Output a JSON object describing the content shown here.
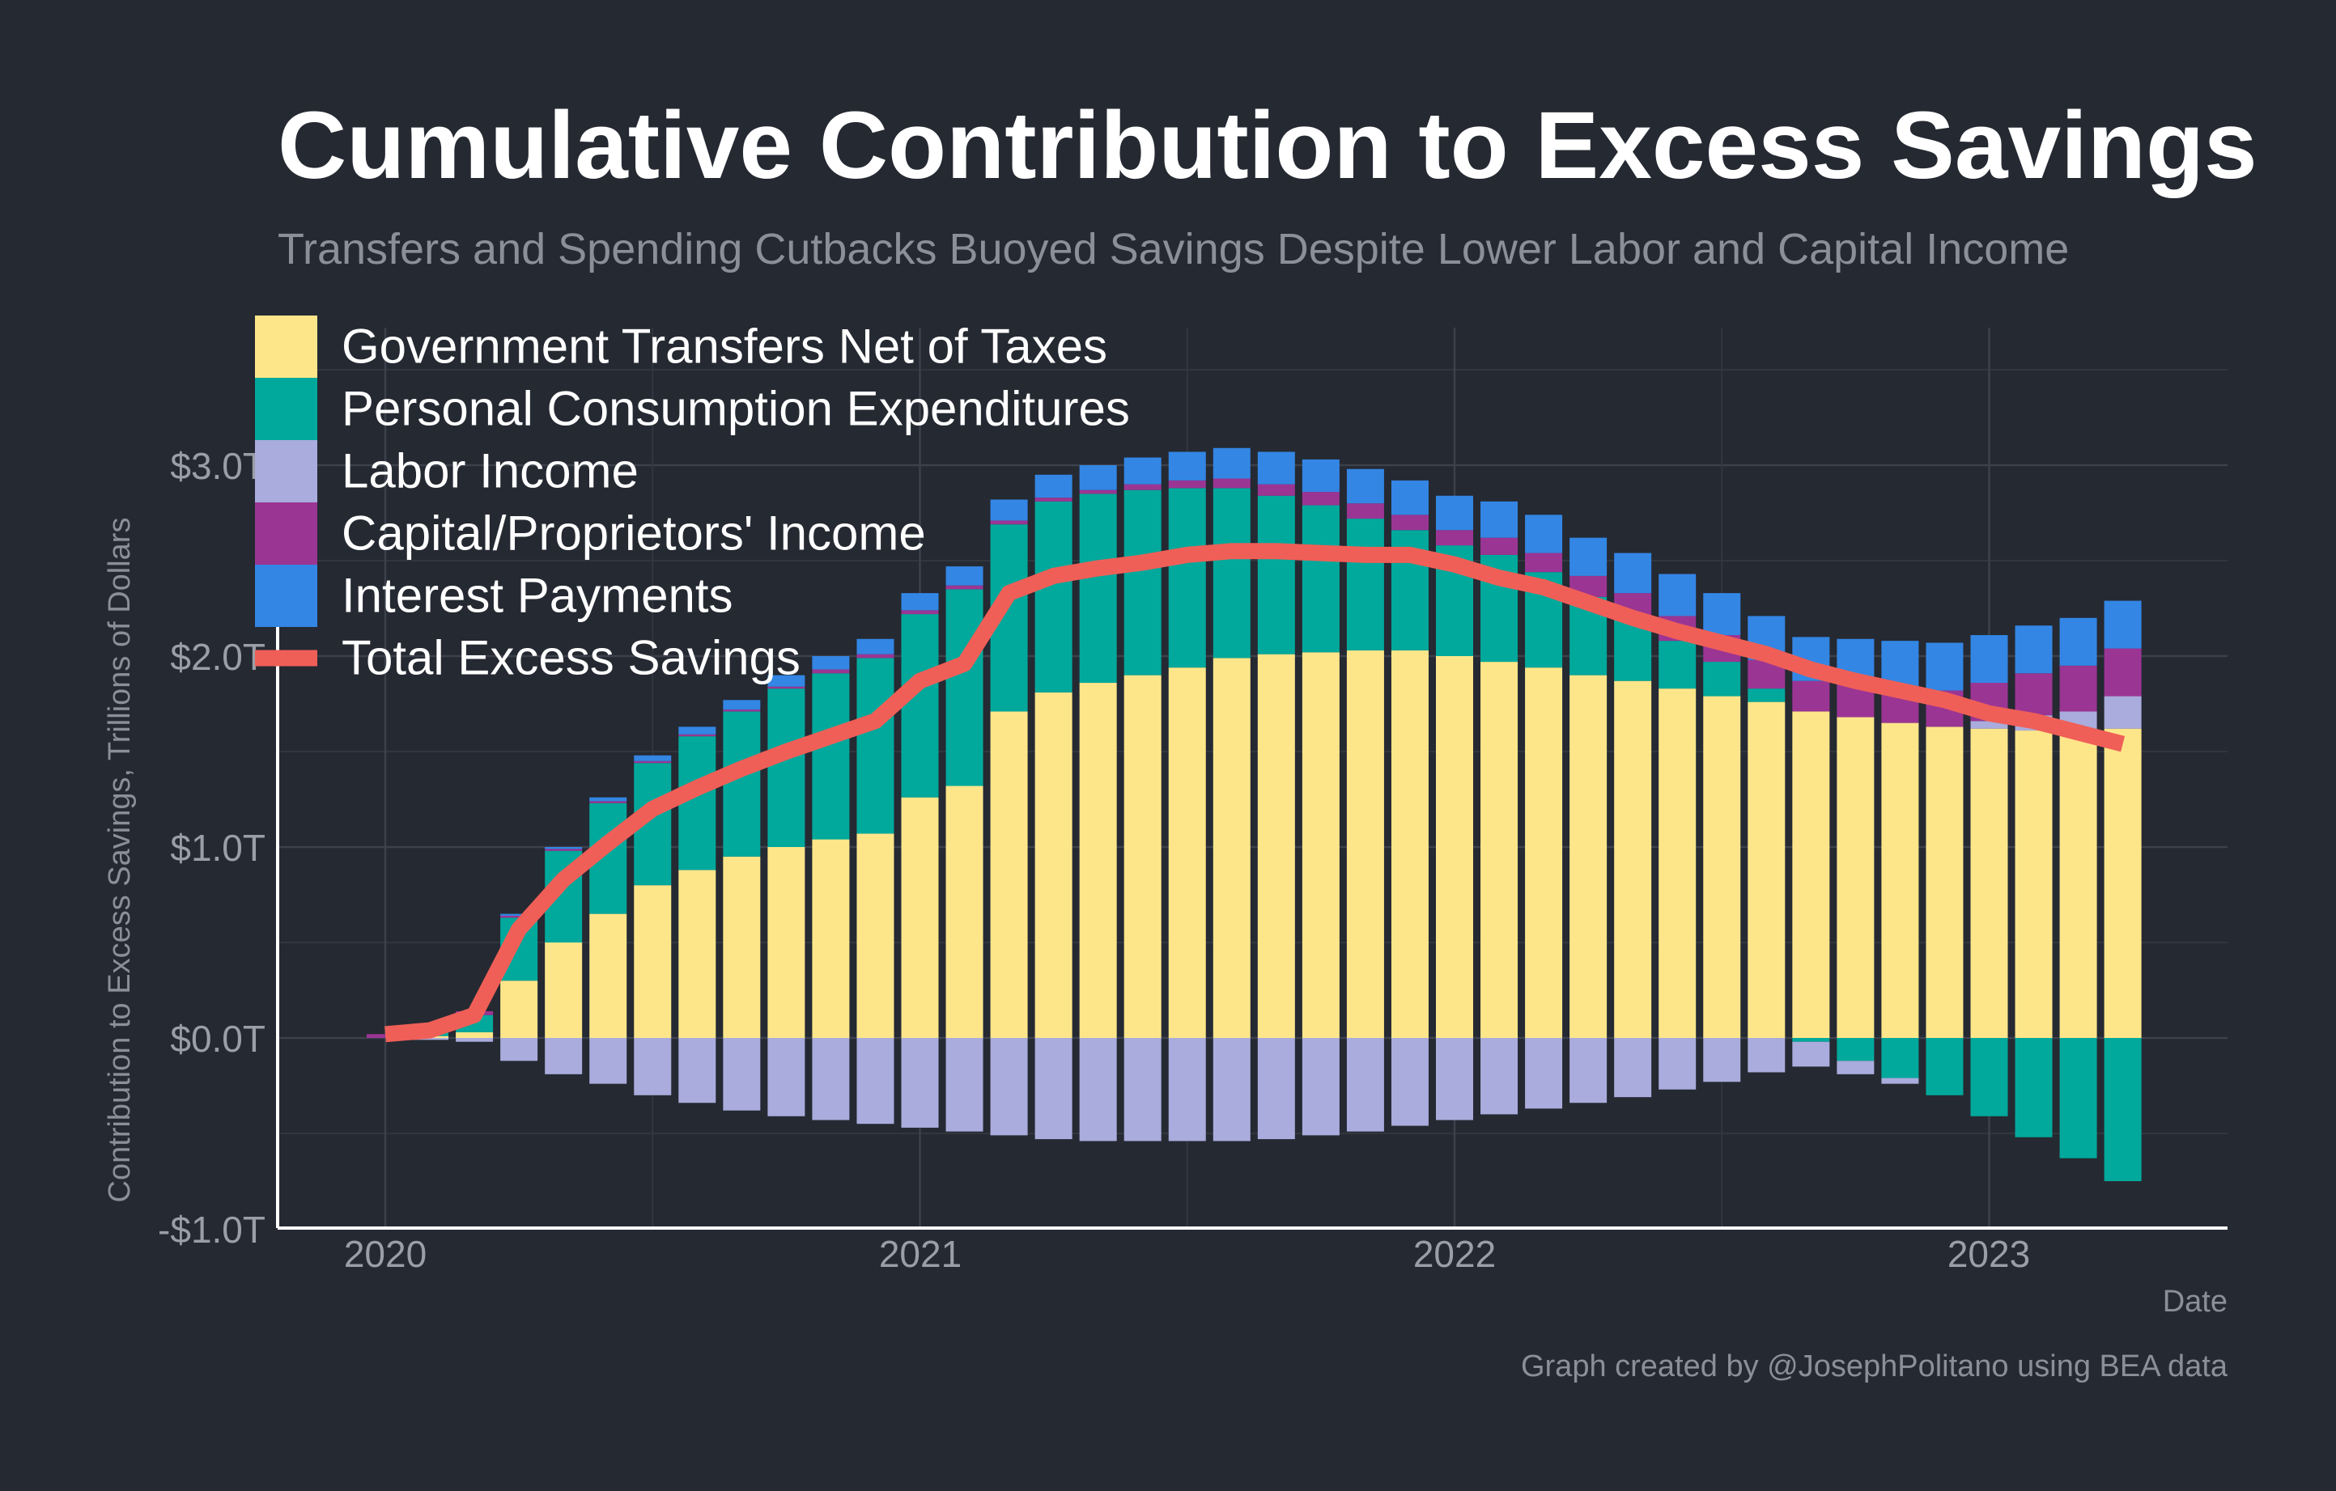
{
  "chart_data": {
    "type": "bar",
    "stacked": true,
    "title": "Cumulative Contribution to Excess Savings",
    "subtitle": "Transfers and Spending Cutbacks Buoyed Savings Despite Lower Labor and Capital Income",
    "xlabel": "Date",
    "ylabel": "Contribution to Excess Savings, Trillions of Dollars",
    "caption": "Graph created by @JosephPolitano using BEA data",
    "ylim": [
      -1.0,
      3.7
    ],
    "y_ticks": [
      -1.0,
      0.0,
      1.0,
      2.0,
      3.0
    ],
    "y_tick_labels": [
      "-$1.0T",
      "$0.0T",
      "$1.0T",
      "$2.0T",
      "$3.0T"
    ],
    "x_ticks": [
      "2020",
      "2021",
      "2022",
      "2023"
    ],
    "grid": true,
    "legend_position": "top-left",
    "x": [
      "2020-01",
      "2020-02",
      "2020-03",
      "2020-04",
      "2020-05",
      "2020-06",
      "2020-07",
      "2020-08",
      "2020-09",
      "2020-10",
      "2020-11",
      "2020-12",
      "2021-01",
      "2021-02",
      "2021-03",
      "2021-04",
      "2021-05",
      "2021-06",
      "2021-07",
      "2021-08",
      "2021-09",
      "2021-10",
      "2021-11",
      "2021-12",
      "2022-01",
      "2022-02",
      "2022-03",
      "2022-04",
      "2022-05",
      "2022-06",
      "2022-07",
      "2022-08",
      "2022-09",
      "2022-10",
      "2022-11",
      "2022-12",
      "2023-01",
      "2023-02",
      "2023-03",
      "2023-04"
    ],
    "series": [
      {
        "name": "Government Transfers Net of Taxes",
        "color": "#fde68a",
        "values": [
          0.0,
          0.01,
          0.03,
          0.3,
          0.5,
          0.65,
          0.8,
          0.88,
          0.95,
          1.0,
          1.04,
          1.07,
          1.26,
          1.32,
          1.71,
          1.81,
          1.86,
          1.9,
          1.94,
          1.99,
          2.01,
          2.02,
          2.03,
          2.03,
          2.0,
          1.97,
          1.94,
          1.9,
          1.87,
          1.83,
          1.79,
          1.76,
          1.71,
          1.68,
          1.65,
          1.63,
          1.62,
          1.61,
          1.61,
          1.62
        ]
      },
      {
        "name": "Personal Consumption Expenditures",
        "color": "#01a99c",
        "values": [
          0.0,
          0.03,
          0.09,
          0.33,
          0.48,
          0.58,
          0.64,
          0.7,
          0.76,
          0.83,
          0.87,
          0.92,
          0.96,
          1.03,
          0.98,
          1.0,
          0.99,
          0.97,
          0.94,
          0.89,
          0.83,
          0.77,
          0.69,
          0.63,
          0.58,
          0.56,
          0.5,
          0.41,
          0.34,
          0.25,
          0.18,
          0.07,
          -0.02,
          -0.12,
          -0.21,
          -0.3,
          -0.41,
          -0.52,
          -0.63,
          -0.75
        ]
      },
      {
        "name": "Labor Income",
        "color": "#a9acdc",
        "values": [
          0.0,
          -0.01,
          -0.02,
          -0.12,
          -0.19,
          -0.24,
          -0.3,
          -0.34,
          -0.38,
          -0.41,
          -0.43,
          -0.45,
          -0.47,
          -0.49,
          -0.51,
          -0.53,
          -0.54,
          -0.54,
          -0.54,
          -0.54,
          -0.53,
          -0.51,
          -0.49,
          -0.46,
          -0.43,
          -0.4,
          -0.37,
          -0.34,
          -0.31,
          -0.27,
          -0.23,
          -0.18,
          -0.13,
          -0.07,
          -0.03,
          0.0,
          0.04,
          0.08,
          0.1,
          0.17
        ]
      },
      {
        "name": "Capital/Proprietors' Income",
        "color": "#9b3594",
        "values": [
          0.02,
          0.02,
          0.02,
          0.01,
          0.01,
          0.01,
          0.01,
          0.01,
          0.01,
          0.01,
          0.02,
          0.02,
          0.02,
          0.02,
          0.02,
          0.02,
          0.02,
          0.03,
          0.04,
          0.05,
          0.06,
          0.07,
          0.08,
          0.08,
          0.08,
          0.09,
          0.1,
          0.11,
          0.12,
          0.13,
          0.14,
          0.15,
          0.16,
          0.17,
          0.18,
          0.19,
          0.2,
          0.22,
          0.24,
          0.25
        ]
      },
      {
        "name": "Interest Payments",
        "color": "#3386e4",
        "values": [
          0.0,
          0.0,
          0.0,
          0.01,
          0.01,
          0.02,
          0.03,
          0.04,
          0.05,
          0.06,
          0.07,
          0.08,
          0.09,
          0.1,
          0.11,
          0.12,
          0.13,
          0.14,
          0.15,
          0.16,
          0.17,
          0.17,
          0.18,
          0.18,
          0.18,
          0.19,
          0.2,
          0.2,
          0.21,
          0.22,
          0.22,
          0.23,
          0.23,
          0.24,
          0.25,
          0.25,
          0.25,
          0.25,
          0.25,
          0.25
        ]
      }
    ],
    "line_series": {
      "name": "Total Excess Savings",
      "color": "#ef5f57",
      "values": [
        0.02,
        0.04,
        0.12,
        0.57,
        0.83,
        1.02,
        1.2,
        1.31,
        1.41,
        1.5,
        1.58,
        1.66,
        1.87,
        1.96,
        2.33,
        2.42,
        2.46,
        2.49,
        2.53,
        2.55,
        2.55,
        2.54,
        2.53,
        2.53,
        2.48,
        2.41,
        2.36,
        2.28,
        2.2,
        2.13,
        2.07,
        2.01,
        1.93,
        1.87,
        1.82,
        1.77,
        1.7,
        1.66,
        1.6,
        1.54
      ]
    }
  }
}
